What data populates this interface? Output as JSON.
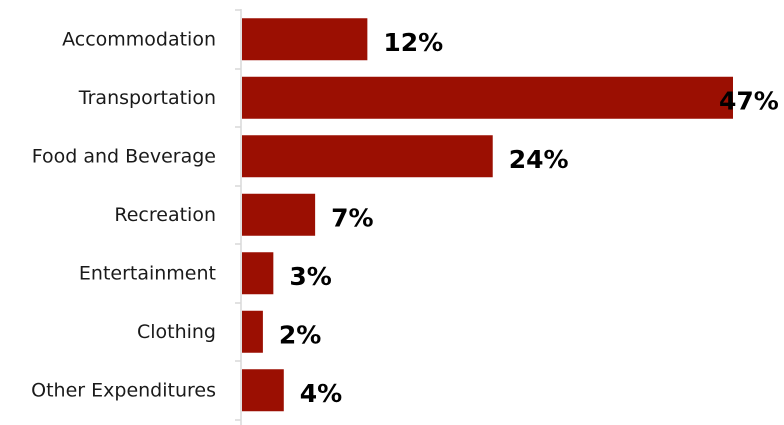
{
  "chart_data": {
    "type": "bar",
    "orientation": "horizontal",
    "categories": [
      "Accommodation",
      "Transportation",
      "Food and Beverage",
      "Recreation",
      "Entertainment",
      "Clothing",
      "Other Expenditures"
    ],
    "values": [
      12,
      47,
      24,
      7,
      3,
      2,
      4
    ],
    "value_labels": [
      "12%",
      "47%",
      "24%",
      "7%",
      "3%",
      "2%",
      "4%"
    ],
    "unit": "%",
    "xlim": [
      0,
      47
    ],
    "grid": false,
    "legend": "none",
    "bar_color": "#9b0f02",
    "axis_color": "#d9d9d9"
  }
}
